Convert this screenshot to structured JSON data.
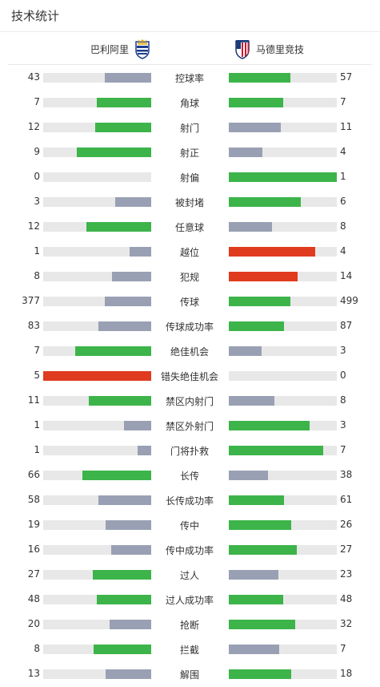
{
  "header": {
    "title": "技术统计"
  },
  "teams": {
    "home_name": "巴利阿里",
    "away_name": "马德里竞技"
  },
  "colors": {
    "win": "#3cb44a",
    "lose": "#9aa0b3",
    "alert": "#e03b1f",
    "track": "#e8e8e8"
  },
  "stats": [
    {
      "label": "控球率",
      "home": "43",
      "away": "57",
      "home_color": "#9aa0b3",
      "away_color": "#3cb44a"
    },
    {
      "label": "角球",
      "home": "7",
      "away": "7",
      "home_color": "#3cb44a",
      "away_color": "#3cb44a"
    },
    {
      "label": "射门",
      "home": "12",
      "away": "11",
      "home_color": "#3cb44a",
      "away_color": "#9aa0b3"
    },
    {
      "label": "射正",
      "home": "9",
      "away": "4",
      "home_color": "#3cb44a",
      "away_color": "#9aa0b3"
    },
    {
      "label": "射偏",
      "home": "0",
      "away": "1",
      "home_color": "#9aa0b3",
      "away_color": "#3cb44a"
    },
    {
      "label": "被封堵",
      "home": "3",
      "away": "6",
      "home_color": "#9aa0b3",
      "away_color": "#3cb44a"
    },
    {
      "label": "任意球",
      "home": "12",
      "away": "8",
      "home_color": "#3cb44a",
      "away_color": "#9aa0b3"
    },
    {
      "label": "越位",
      "home": "1",
      "away": "4",
      "home_color": "#9aa0b3",
      "away_color": "#e03b1f"
    },
    {
      "label": "犯规",
      "home": "8",
      "away": "14",
      "home_color": "#9aa0b3",
      "away_color": "#e03b1f"
    },
    {
      "label": "传球",
      "home": "377",
      "away": "499",
      "home_color": "#9aa0b3",
      "away_color": "#3cb44a"
    },
    {
      "label": "传球成功率",
      "home": "83",
      "away": "87",
      "home_color": "#9aa0b3",
      "away_color": "#3cb44a"
    },
    {
      "label": "绝佳机会",
      "home": "7",
      "away": "3",
      "home_color": "#3cb44a",
      "away_color": "#9aa0b3"
    },
    {
      "label": "错失绝佳机会",
      "home": "5",
      "away": "0",
      "home_color": "#e03b1f",
      "away_color": "#9aa0b3"
    },
    {
      "label": "禁区内射门",
      "home": "11",
      "away": "8",
      "home_color": "#3cb44a",
      "away_color": "#9aa0b3"
    },
    {
      "label": "禁区外射门",
      "home": "1",
      "away": "3",
      "home_color": "#9aa0b3",
      "away_color": "#3cb44a"
    },
    {
      "label": "门将扑救",
      "home": "1",
      "away": "7",
      "home_color": "#9aa0b3",
      "away_color": "#3cb44a"
    },
    {
      "label": "长传",
      "home": "66",
      "away": "38",
      "home_color": "#3cb44a",
      "away_color": "#9aa0b3"
    },
    {
      "label": "长传成功率",
      "home": "58",
      "away": "61",
      "home_color": "#9aa0b3",
      "away_color": "#3cb44a"
    },
    {
      "label": "传中",
      "home": "19",
      "away": "26",
      "home_color": "#9aa0b3",
      "away_color": "#3cb44a"
    },
    {
      "label": "传中成功率",
      "home": "16",
      "away": "27",
      "home_color": "#9aa0b3",
      "away_color": "#3cb44a"
    },
    {
      "label": "过人",
      "home": "27",
      "away": "23",
      "home_color": "#3cb44a",
      "away_color": "#9aa0b3"
    },
    {
      "label": "过人成功率",
      "home": "48",
      "away": "48",
      "home_color": "#3cb44a",
      "away_color": "#3cb44a"
    },
    {
      "label": "抢断",
      "home": "20",
      "away": "32",
      "home_color": "#9aa0b3",
      "away_color": "#3cb44a"
    },
    {
      "label": "拦截",
      "home": "8",
      "away": "7",
      "home_color": "#3cb44a",
      "away_color": "#9aa0b3"
    },
    {
      "label": "解围",
      "home": "13",
      "away": "18",
      "home_color": "#9aa0b3",
      "away_color": "#3cb44a"
    }
  ]
}
